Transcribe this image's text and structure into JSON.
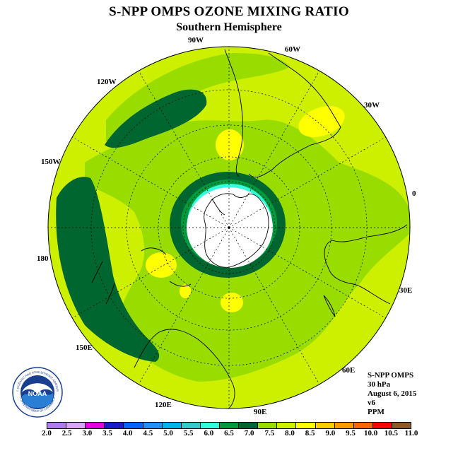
{
  "header": {
    "title": "S-NPP OMPS OZONE MIXING RATIO",
    "subtitle": "Southern Hemisphere"
  },
  "longitude_labels": [
    {
      "label": "90W"
    },
    {
      "label": "60W"
    },
    {
      "label": "30W"
    },
    {
      "label": "0"
    },
    {
      "label": "30E"
    },
    {
      "label": "60E"
    },
    {
      "label": "90E"
    },
    {
      "label": "120E"
    },
    {
      "label": "150E"
    },
    {
      "label": "180"
    },
    {
      "label": "150W"
    },
    {
      "label": "120W"
    }
  ],
  "info": {
    "instrument": "S-NPP OMPS",
    "level": "30 hPa",
    "date": "August 6, 2015",
    "version": "v6",
    "units": "PPM"
  },
  "logo": {
    "text": "NOAA",
    "ring_text": "NATIONAL OCEANIC AND ATMOSPHERIC ADMINISTRATION",
    "ring_text_bottom": "U.S. DEPARTMENT OF COMMERCE"
  },
  "colorbar": {
    "ticks": [
      "2.0",
      "2.5",
      "3.0",
      "3.5",
      "4.0",
      "4.5",
      "5.0",
      "5.5",
      "6.0",
      "6.5",
      "7.0",
      "7.5",
      "8.0",
      "8.5",
      "9.0",
      "9.5",
      "10.0",
      "10.5",
      "11.0"
    ],
    "colors": [
      "#b07ee8",
      "#d9a8f0",
      "#e000e0",
      "#1a1acc",
      "#0066ff",
      "#1e90ff",
      "#00b4f0",
      "#33cccc",
      "#33ffdd",
      "#009a3e",
      "#006630",
      "#99dd00",
      "#ccf000",
      "#ffff00",
      "#ffcc00",
      "#ff9900",
      "#ff6600",
      "#ff0000",
      "#8b5a2b"
    ]
  },
  "map_colors": {
    "background": "#ccf000",
    "mid_band": "#99dd00",
    "high": "#ffff00",
    "dark_green": "#006630",
    "green": "#009a3e",
    "cyan": "#33ffdd",
    "polar_hole": "#ffffff"
  }
}
